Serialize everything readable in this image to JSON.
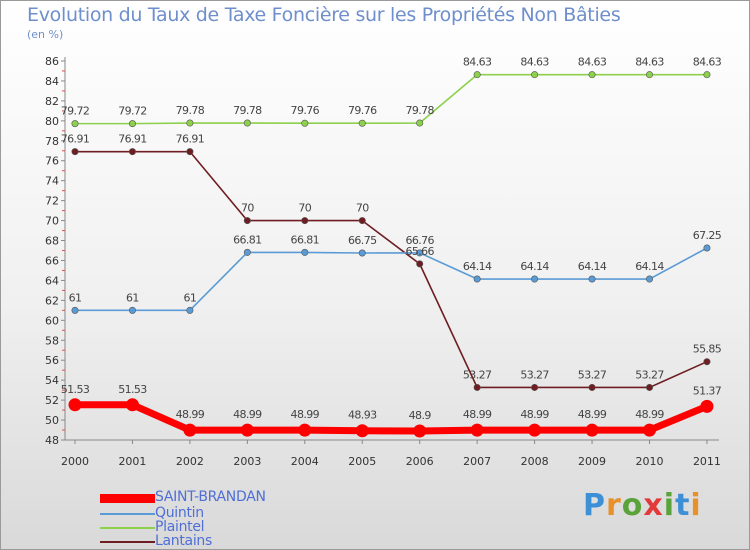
{
  "chart_data": {
    "type": "line",
    "title": "Evolution du Taux de Taxe Foncière sur les Propriétés Non Bâties",
    "subtitle": "(en %)",
    "xlabel": "",
    "ylabel": "",
    "categories": [
      "2000",
      "2001",
      "2002",
      "2003",
      "2004",
      "2005",
      "2006",
      "2007",
      "2008",
      "2009",
      "2010",
      "2011"
    ],
    "ylim": [
      48,
      86
    ],
    "yticks": [
      48,
      50,
      52,
      54,
      56,
      58,
      60,
      62,
      64,
      66,
      68,
      70,
      72,
      74,
      76,
      78,
      80,
      82,
      84,
      86
    ],
    "grid": false,
    "legend_position": "bottom-left",
    "series": [
      {
        "name": "Plaintel",
        "color": "#8cd04b",
        "values": [
          79.72,
          79.72,
          79.78,
          79.78,
          79.76,
          79.76,
          79.78,
          84.63,
          84.63,
          84.63,
          84.63,
          84.63
        ],
        "labels": [
          "79.72",
          "79.72",
          "79.78",
          "79.78",
          "79.76",
          "79.76",
          "79.78",
          "84.63",
          "84.63",
          "84.63",
          "84.63",
          "84.63"
        ]
      },
      {
        "name": "Lantains",
        "color": "#6e1e22",
        "values": [
          76.91,
          76.91,
          76.91,
          70,
          70,
          70,
          65.66,
          53.27,
          53.27,
          53.27,
          53.27,
          55.85
        ],
        "labels": [
          "76.91",
          "76.91",
          "76.91",
          "70",
          "70",
          "70",
          "65.66",
          "53.27",
          "53.27",
          "53.27",
          "53.27",
          "55.85"
        ]
      },
      {
        "name": "Quintin",
        "color": "#5b9bd5",
        "values": [
          61,
          61,
          61,
          66.81,
          66.81,
          66.75,
          66.76,
          64.14,
          64.14,
          64.14,
          64.14,
          67.25
        ],
        "labels": [
          "61",
          "61",
          "61",
          "66.81",
          "66.81",
          "66.75",
          "66.76",
          "64.14",
          "64.14",
          "64.14",
          "64.14",
          "67.25"
        ]
      },
      {
        "name": "SAINT-BRANDAN",
        "color": "#ff0000",
        "values": [
          51.53,
          51.53,
          48.99,
          48.99,
          48.99,
          48.93,
          48.9,
          48.99,
          48.99,
          48.99,
          48.99,
          51.37
        ],
        "labels": [
          "51.53",
          "51.53",
          "48.99",
          "48.99",
          "48.99",
          "48.93",
          "48.9",
          "48.99",
          "48.99",
          "48.99",
          "48.99",
          "51.37"
        ]
      }
    ]
  },
  "legend": [
    {
      "name": "SAINT-BRANDAN",
      "color": "#ff0000"
    },
    {
      "name": "Quintin",
      "color": "#5b9bd5"
    },
    {
      "name": "Plaintel",
      "color": "#8cd04b"
    },
    {
      "name": "Lantains",
      "color": "#6e1e22"
    }
  ],
  "logo": {
    "letters": [
      "P",
      "r",
      "o",
      "x",
      "i",
      "t",
      "i"
    ],
    "colors": [
      "#3d8fd6",
      "#e8912a",
      "#5aa33a",
      "#e23a3a",
      "#5aa33a",
      "#3d8fd6",
      "#e8912a"
    ]
  }
}
